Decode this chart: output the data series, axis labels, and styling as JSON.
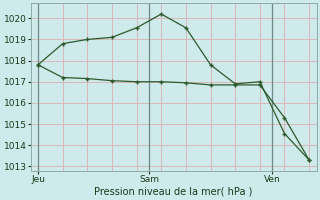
{
  "bg_color": "#ceeaea",
  "grid_color_h": "#d8b8b8",
  "grid_color_v": "#d8b8b8",
  "line_color": "#2d5a2d",
  "line1_x": [
    0,
    1,
    2,
    3,
    4,
    5,
    6,
    7,
    8,
    9,
    10,
    11
  ],
  "line1_y": [
    1017.8,
    1017.2,
    1017.15,
    1017.05,
    1017.0,
    1017.0,
    1016.95,
    1016.85,
    1016.85,
    1016.85,
    1015.3,
    1013.3
  ],
  "line2_x": [
    0,
    1,
    2,
    3,
    4,
    5,
    6,
    7,
    8,
    9,
    10,
    11
  ],
  "line2_y": [
    1017.8,
    1018.8,
    1019.0,
    1019.1,
    1019.55,
    1020.2,
    1019.55,
    1017.8,
    1016.9,
    1017.0,
    1014.55,
    1013.3
  ],
  "ylim": [
    1012.8,
    1020.7
  ],
  "yticks": [
    1013,
    1014,
    1015,
    1016,
    1017,
    1018,
    1019,
    1020
  ],
  "xtick_positions": [
    0,
    4.5,
    8.5,
    10
  ],
  "xtick_labels": [
    "Jeu",
    "Sam",
    "Ven",
    ""
  ],
  "vline_positions": [
    0,
    4.5,
    9.5
  ],
  "xlim": [
    -0.3,
    11.3
  ],
  "xlabel": "Pression niveau de la mer( hPa )",
  "hgrid_positions": [
    1013,
    1014,
    1015,
    1016,
    1017,
    1018,
    1019,
    1020
  ],
  "vgrid_positions": [
    0,
    1,
    2,
    3,
    4,
    5,
    6,
    7,
    8,
    9,
    10,
    11
  ]
}
